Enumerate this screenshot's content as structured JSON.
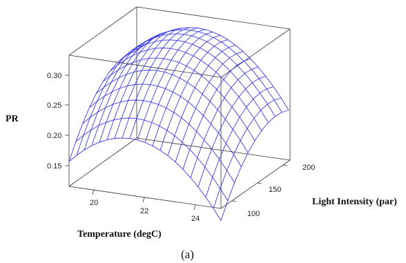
{
  "chart_data": {
    "type": "surface",
    "zlabel": "PR",
    "xlabel": "Temperature (degC)",
    "ylabel": "Light Intensity (par)",
    "caption": "(a)",
    "z_ticks": [
      "0.30",
      "0.25",
      "0.20",
      "0.15"
    ],
    "x_ticks": [
      "20",
      "22",
      "24"
    ],
    "y_ticks": [
      "100",
      "150",
      "200"
    ],
    "xlim": [
      19,
      25
    ],
    "ylim": [
      75,
      210
    ],
    "zlim": [
      0.12,
      0.34
    ],
    "grid": false,
    "surface_color": "#3a3ae8",
    "surface_samples": [
      {
        "temperature": 19,
        "light": 75,
        "pr": 0.195
      },
      {
        "temperature": 19,
        "light": 210,
        "pr": 0.28
      },
      {
        "temperature": 22,
        "light": 140,
        "pr": 0.325
      },
      {
        "temperature": 25,
        "light": 75,
        "pr": 0.13
      },
      {
        "temperature": 25,
        "light": 210,
        "pr": 0.255
      }
    ]
  }
}
